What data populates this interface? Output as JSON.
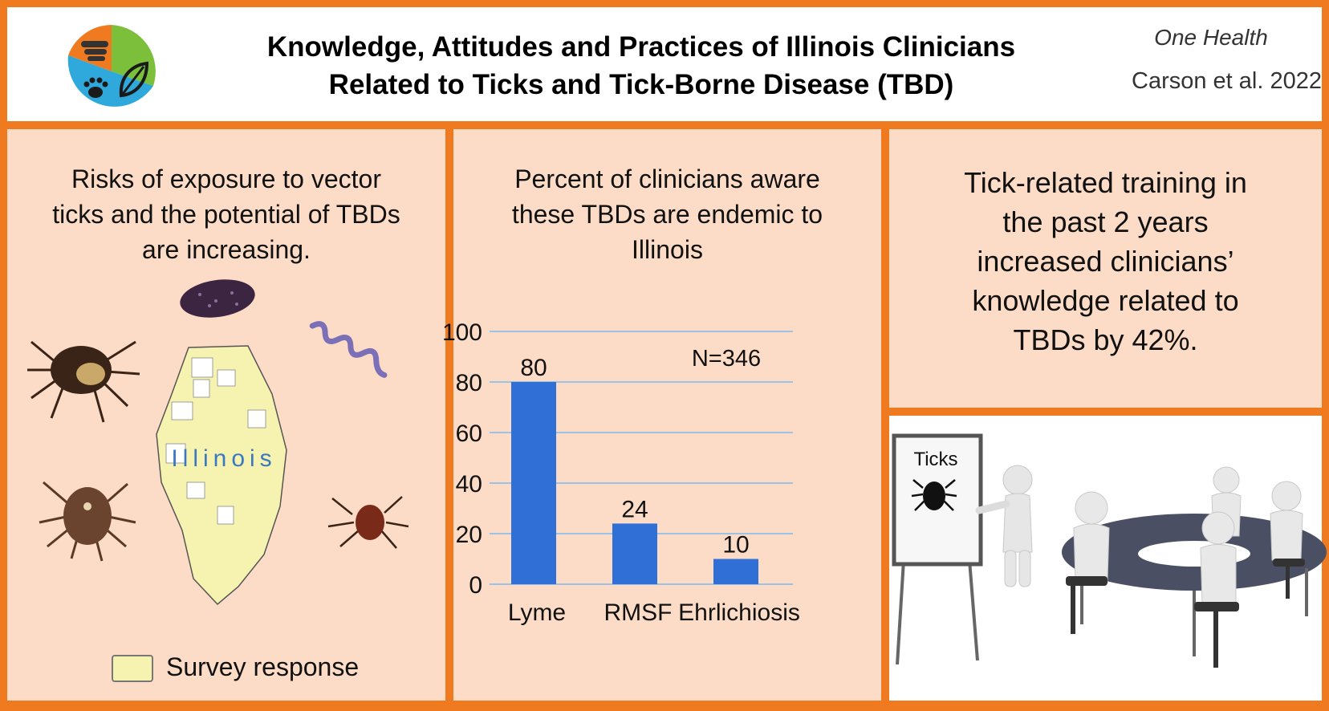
{
  "header": {
    "title_line1": "Knowledge, Attitudes and Practices of Illinois Clinicians",
    "title_line2": "Related to Ticks and Tick-Borne Disease (TBD)",
    "journal": "One Health",
    "citation": "Carson et al. 2022"
  },
  "panel_left": {
    "text_lines": [
      "Risks of exposure to vector",
      "ticks and the potential of TBDs",
      "are increasing."
    ],
    "map_label": "Illinois",
    "legend_label": "Survey response"
  },
  "panel_chart": {
    "text_lines": [
      "Percent of clinicians aware",
      "these TBDs are endemic to",
      "Illinois"
    ]
  },
  "chart_data": {
    "type": "bar",
    "categories": [
      "Lyme",
      "RMSF",
      "Ehrlichiosis"
    ],
    "values": [
      80,
      24,
      10
    ],
    "annotation": "N=346",
    "yticks": [
      0,
      20,
      40,
      60,
      80,
      100
    ],
    "ylim": [
      0,
      100
    ],
    "grid": true,
    "bar_color": "#2f6fd6"
  },
  "panel_right": {
    "text_lines": [
      "Tick-related training in",
      "the past 2 years",
      "increased clinicians’",
      "knowledge related to",
      "TBDs by 42%."
    ],
    "board_label": "Ticks"
  },
  "colors": {
    "border": "#f07a1f",
    "panel": "#fcdcc6",
    "legend": "#f6f2b0"
  }
}
